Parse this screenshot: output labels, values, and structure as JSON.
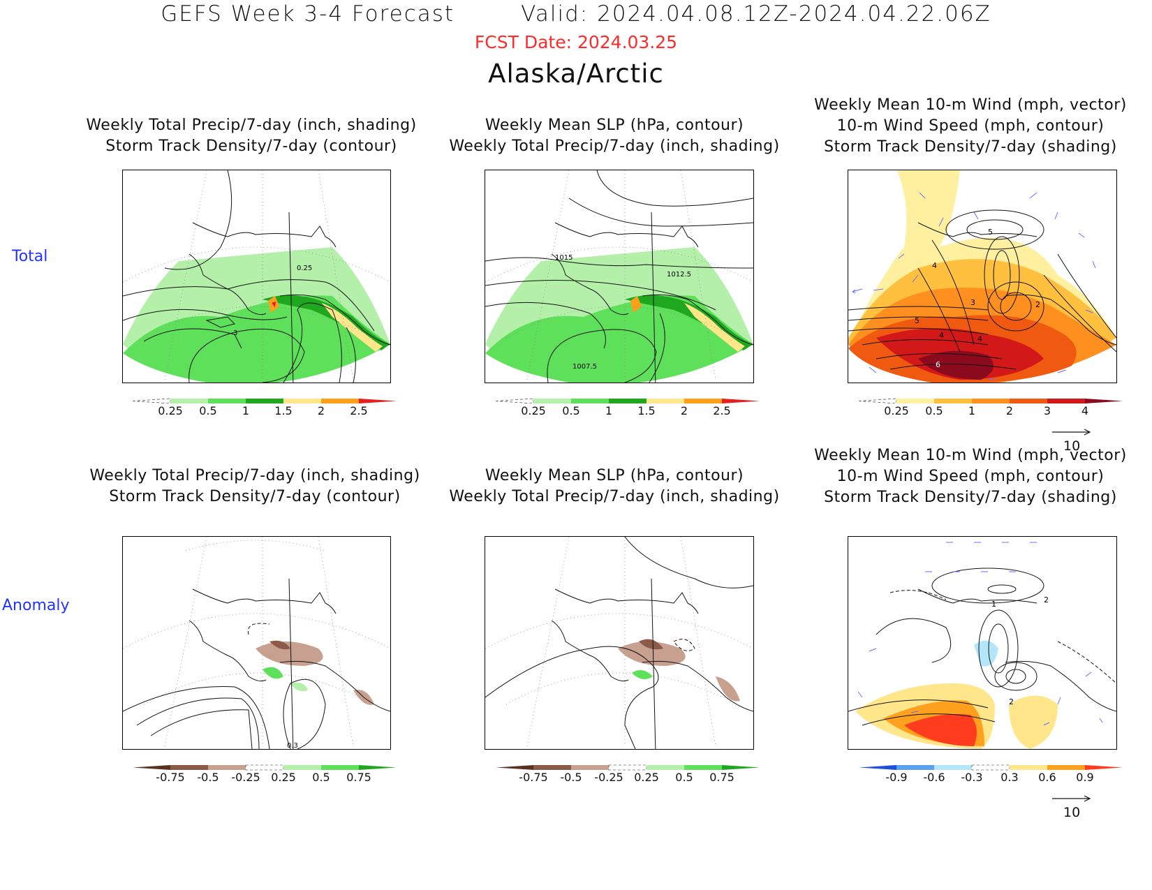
{
  "header": {
    "title": "GEFS Week 3-4 Forecast",
    "valid": "Valid: 2024.04.08.12Z-2024.04.22.06Z",
    "fcst_date": "FCST Date: 2024.03.25",
    "region": "Alaska/Arctic"
  },
  "row_labels": {
    "total": "Total",
    "anomaly": "Anomaly"
  },
  "panels": {
    "precip_storm": {
      "title_total_1": "Weekly Total Precip/7-day (inch, shading)",
      "title_total_2": "Storm Track Density/7-day (contour)",
      "title_anom_1": "Weekly Total Precip/7-day (inch, shading)",
      "title_anom_2": "Storm Track Density/7-day (contour)"
    },
    "slp_precip": {
      "title_1": "Weekly Mean SLP (hPa, contour)",
      "title_2": "Weekly Total Precip/7-day (inch, shading)"
    },
    "wind_storm": {
      "title_1": "Weekly Mean 10-m Wind (mph, vector)",
      "title_2": "10-m Wind Speed (mph, contour)",
      "title_3": "Storm Track Density/7-day (shading)"
    }
  },
  "map_labels": {
    "total_precip": {
      "c1": "0.25",
      "c2": "3"
    },
    "total_slp": {
      "c1": "1015",
      "c2": "1012.5",
      "c3": "1007.5"
    },
    "total_wind": {
      "c1": "5",
      "c2": "4",
      "c3": "3",
      "c4": "2",
      "c5": "5",
      "c6": "4",
      "c7": "4",
      "c8": "6"
    },
    "anom_precip": {
      "c1": "0.3"
    },
    "anom_wind": {
      "c1": "1",
      "c2": "2",
      "c3": "2"
    }
  },
  "colorbars": {
    "total_precip": {
      "labels": [
        "0.25",
        "0.5",
        "1",
        "1.5",
        "2",
        "2.5"
      ],
      "colors": [
        "#ffffff",
        "#b4f0aa",
        "#5ee05a",
        "#1fa81f",
        "#ffe68a",
        "#ff9f1a",
        "#e61e1e"
      ]
    },
    "total_storm": {
      "labels": [
        "0.25",
        "0.5",
        "1",
        "2",
        "3",
        "4"
      ],
      "colors": [
        "#ffffff",
        "#fff0a0",
        "#ffc040",
        "#ff9020",
        "#f05a10",
        "#d21818",
        "#8c0a1e"
      ]
    },
    "anom_precip": {
      "labels": [
        "-0.75",
        "-0.5",
        "-0.25",
        "0.25",
        "0.5",
        "0.75"
      ],
      "colors": [
        "#5a3222",
        "#8c5a48",
        "#c8a090",
        "#ffffff",
        "#b4f0aa",
        "#5ee05a",
        "#1fa81f"
      ]
    },
    "anom_storm": {
      "labels": [
        "-0.9",
        "-0.6",
        "-0.3",
        "0.3",
        "0.6",
        "0.9"
      ],
      "colors": [
        "#1e50dc",
        "#5aa0f0",
        "#b4e6fa",
        "#ffffff",
        "#ffe68a",
        "#ffa01e",
        "#ff3c1e"
      ]
    },
    "vector_ref": "10"
  }
}
